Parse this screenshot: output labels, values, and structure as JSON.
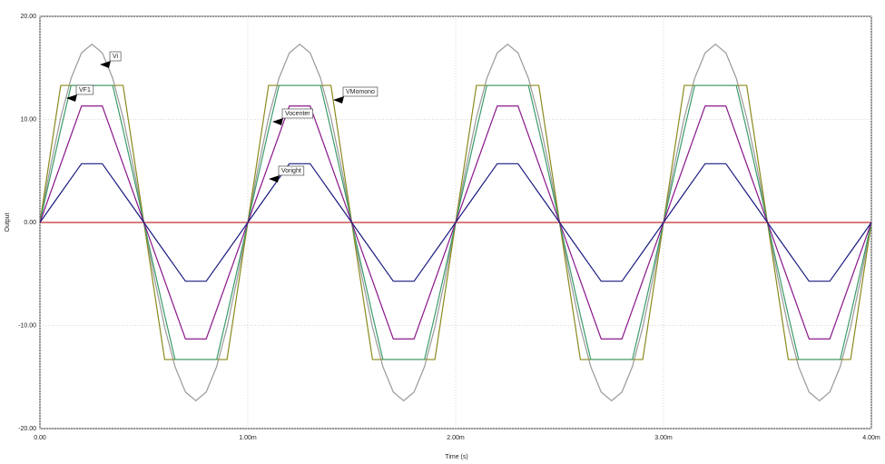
{
  "chart_data": {
    "type": "line",
    "x_label": "Time (s)",
    "y_label": "Output",
    "xlim": [
      0,
      0.004
    ],
    "ylim": [
      -20,
      20
    ],
    "xticks": [
      {
        "value": 0,
        "label": "0.00"
      },
      {
        "value": 0.001,
        "label": "1.00m"
      },
      {
        "value": 0.002,
        "label": "2.00m"
      },
      {
        "value": 0.003,
        "label": "3.00m"
      },
      {
        "value": 0.004,
        "label": "4.00m"
      }
    ],
    "yticks": [
      {
        "value": -20,
        "label": "-20.00"
      },
      {
        "value": -10,
        "label": "-10.00"
      },
      {
        "value": 0,
        "label": "0.00"
      },
      {
        "value": 10,
        "label": "10.00"
      },
      {
        "value": 20,
        "label": "20.00"
      }
    ],
    "grid": true,
    "x": [
      0,
      5e-05,
      0.0001,
      0.00015,
      0.0002,
      0.00025,
      0.0003,
      0.00035,
      0.0004,
      0.00045,
      0.0005,
      0.00055,
      0.0006,
      0.00065,
      0.0007,
      0.00075,
      0.0008,
      0.00085,
      0.0009,
      0.00095,
      0.001,
      0.00105,
      0.0011,
      0.00115,
      0.0012,
      0.00125,
      0.0013,
      0.00135,
      0.0014,
      0.00145,
      0.0015,
      0.00155,
      0.0016,
      0.00165,
      0.0017,
      0.00175,
      0.0018,
      0.00185,
      0.0019,
      0.00195,
      0.002,
      0.00205,
      0.0021,
      0.00215,
      0.0022,
      0.00225,
      0.0023,
      0.00235,
      0.0024,
      0.00245,
      0.0025,
      0.00255,
      0.0026,
      0.00265,
      0.0027,
      0.00275,
      0.0028,
      0.00285,
      0.0029,
      0.00295,
      0.003,
      0.00305,
      0.0031,
      0.00315,
      0.0032,
      0.00325,
      0.0033,
      0.00335,
      0.0034,
      0.00345,
      0.0035,
      0.00355,
      0.0036,
      0.00365,
      0.0037,
      0.00375,
      0.0038,
      0.00385,
      0.0039,
      0.00395,
      0.004
    ],
    "series": [
      {
        "name": "Vi",
        "color": "#9a9a9a",
        "values": [
          0,
          5.35,
          10.17,
          14,
          16.45,
          17.3,
          16.45,
          14,
          10.17,
          5.35,
          0,
          -5.35,
          -10.17,
          -14,
          -16.45,
          -17.3,
          -16.45,
          -14,
          -10.17,
          -5.35,
          0,
          5.35,
          10.17,
          14,
          16.45,
          17.3,
          16.45,
          14,
          10.17,
          5.35,
          0,
          -5.35,
          -10.17,
          -14,
          -16.45,
          -17.3,
          -16.45,
          -14,
          -10.17,
          -5.35,
          0,
          5.35,
          10.17,
          14,
          16.45,
          17.3,
          16.45,
          14,
          10.17,
          5.35,
          0,
          -5.35,
          -10.17,
          -14,
          -16.45,
          -17.3,
          -16.45,
          -14,
          -10.17,
          -5.35,
          0,
          5.35,
          10.17,
          14,
          16.45,
          17.3,
          16.45,
          14,
          10.17,
          5.35,
          0,
          -5.35,
          -10.17,
          -14,
          -16.45,
          -17.3,
          -16.45,
          -14,
          -10.17,
          -5.35,
          0
        ]
      },
      {
        "name": "VF1",
        "color": "#3a9a6a",
        "values": [
          0,
          4.5,
          9,
          13.3,
          13.3,
          13.3,
          13.3,
          13.3,
          9,
          4.5,
          0,
          -4.5,
          -9,
          -13.3,
          -13.3,
          -13.3,
          -13.3,
          -13.3,
          -9,
          -4.5,
          0,
          4.5,
          9,
          13.3,
          13.3,
          13.3,
          13.3,
          13.3,
          9,
          4.5,
          0,
          -4.5,
          -9,
          -13.3,
          -13.3,
          -13.3,
          -13.3,
          -13.3,
          -9,
          -4.5,
          0,
          4.5,
          9,
          13.3,
          13.3,
          13.3,
          13.3,
          13.3,
          9,
          4.5,
          0,
          -4.5,
          -9,
          -13.3,
          -13.3,
          -13.3,
          -13.3,
          -13.3,
          -9,
          -4.5,
          0,
          4.5,
          9,
          13.3,
          13.3,
          13.3,
          13.3,
          13.3,
          9,
          4.5,
          0,
          -4.5,
          -9,
          -13.3,
          -13.3,
          -13.3,
          -13.3,
          -13.3,
          -9,
          -4.5,
          0
        ]
      },
      {
        "name": "VMomono",
        "color": "#8a8a1e",
        "values": [
          0,
          6.65,
          13.3,
          13.3,
          13.3,
          13.3,
          13.3,
          13.3,
          13.3,
          6.65,
          0,
          -6.65,
          -13.3,
          -13.3,
          -13.3,
          -13.3,
          -13.3,
          -13.3,
          -13.3,
          -6.65,
          0,
          6.65,
          13.3,
          13.3,
          13.3,
          13.3,
          13.3,
          13.3,
          13.3,
          6.65,
          0,
          -6.65,
          -13.3,
          -13.3,
          -13.3,
          -13.3,
          -13.3,
          -13.3,
          -13.3,
          -6.65,
          0,
          6.65,
          13.3,
          13.3,
          13.3,
          13.3,
          13.3,
          13.3,
          13.3,
          6.65,
          0,
          -6.65,
          -13.3,
          -13.3,
          -13.3,
          -13.3,
          -13.3,
          -13.3,
          -13.3,
          -6.65,
          0,
          6.65,
          13.3,
          13.3,
          13.3,
          13.3,
          13.3,
          13.3,
          13.3,
          6.65,
          0,
          -6.65,
          -13.3,
          -13.3,
          -13.3,
          -13.3,
          -13.3,
          -13.3,
          -13.3,
          -6.65,
          0
        ]
      },
      {
        "name": "Vocenter",
        "color": "#8b1a8b",
        "values": [
          0,
          2.83,
          5.65,
          8.48,
          11.3,
          11.3,
          11.3,
          8.48,
          5.65,
          2.83,
          0,
          -2.83,
          -5.65,
          -8.48,
          -11.3,
          -11.3,
          -11.3,
          -8.48,
          -5.65,
          -2.83,
          0,
          2.83,
          5.65,
          8.48,
          11.3,
          11.3,
          11.3,
          8.48,
          5.65,
          2.83,
          0,
          -2.83,
          -5.65,
          -8.48,
          -11.3,
          -11.3,
          -11.3,
          -8.48,
          -5.65,
          -2.83,
          0,
          2.83,
          5.65,
          8.48,
          11.3,
          11.3,
          11.3,
          8.48,
          5.65,
          2.83,
          0,
          -2.83,
          -5.65,
          -8.48,
          -11.3,
          -11.3,
          -11.3,
          -8.48,
          -5.65,
          -2.83,
          0,
          2.83,
          5.65,
          8.48,
          11.3,
          11.3,
          11.3,
          8.48,
          5.65,
          2.83,
          0,
          -2.83,
          -5.65,
          -8.48,
          -11.3,
          -11.3,
          -11.3,
          -8.48,
          -5.65,
          -2.83,
          0
        ]
      },
      {
        "name": "Voright",
        "color": "#1a1a80",
        "values": [
          0,
          1.43,
          2.85,
          4.28,
          5.7,
          5.7,
          5.7,
          4.28,
          2.85,
          1.43,
          0,
          -1.43,
          -2.85,
          -4.28,
          -5.7,
          -5.7,
          -5.7,
          -4.28,
          -2.85,
          -1.43,
          0,
          1.43,
          2.85,
          4.28,
          5.7,
          5.7,
          5.7,
          4.28,
          2.85,
          1.43,
          0,
          -1.43,
          -2.85,
          -4.28,
          -5.7,
          -5.7,
          -5.7,
          -4.28,
          -2.85,
          -1.43,
          0,
          1.43,
          2.85,
          4.28,
          5.7,
          5.7,
          5.7,
          4.28,
          2.85,
          1.43,
          0,
          -1.43,
          -2.85,
          -4.28,
          -5.7,
          -5.7,
          -5.7,
          -4.28,
          -2.85,
          -1.43,
          0,
          1.43,
          2.85,
          4.28,
          5.7,
          5.7,
          5.7,
          4.28,
          2.85,
          1.43,
          0,
          -1.43,
          -2.85,
          -4.28,
          -5.7,
          -5.7,
          -5.7,
          -4.28,
          -2.85,
          -1.43,
          0
        ]
      },
      {
        "color": "#c03030",
        "values": [
          0,
          0,
          0,
          0,
          0,
          0,
          0,
          0,
          0,
          0,
          0,
          0,
          0,
          0,
          0,
          0,
          0,
          0,
          0,
          0,
          0,
          0,
          0,
          0,
          0,
          0,
          0,
          0,
          0,
          0,
          0,
          0,
          0,
          0,
          0,
          0,
          0,
          0,
          0,
          0,
          0,
          0,
          0,
          0,
          0,
          0,
          0,
          0,
          0,
          0,
          0,
          0,
          0,
          0,
          0,
          0,
          0,
          0,
          0,
          0,
          0,
          0,
          0,
          0,
          0,
          0,
          0,
          0,
          0,
          0,
          0,
          0,
          0,
          0,
          0,
          0,
          0,
          0,
          0,
          0,
          0
        ]
      }
    ]
  }
}
